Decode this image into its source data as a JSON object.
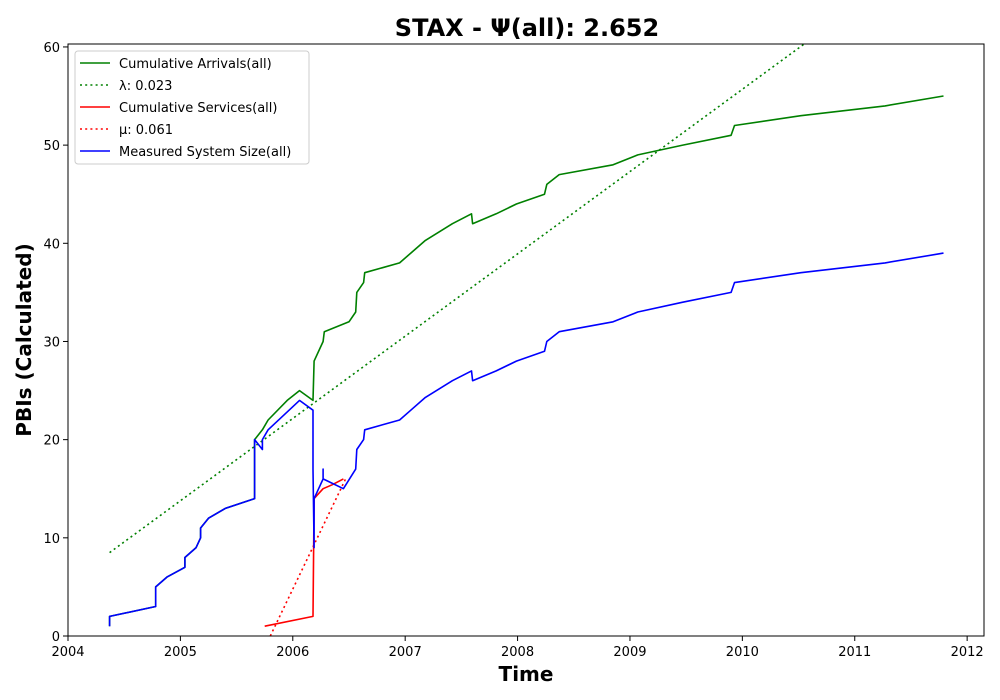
{
  "chart_data": {
    "type": "line",
    "title": "STAX -  Ψ(all): 2.652",
    "xlabel": "Time",
    "ylabel": "PBIs (Calculated)",
    "xlim": [
      2004.0,
      2012.15
    ],
    "ylim": [
      0,
      60.3
    ],
    "xticks": [
      2004,
      2005,
      2006,
      2007,
      2008,
      2009,
      2010,
      2011,
      2012
    ],
    "yticks": [
      0,
      10,
      20,
      30,
      40,
      50,
      60
    ],
    "grid": false,
    "legend_position": "top-left",
    "series": [
      {
        "name": "Cumulative Arrivals(all)",
        "style": "solid",
        "color": "#008000",
        "points": [
          [
            2004.37,
            1
          ],
          [
            2004.37,
            2
          ],
          [
            2004.78,
            3
          ],
          [
            2004.78,
            5
          ],
          [
            2004.88,
            6
          ],
          [
            2005.04,
            7
          ],
          [
            2005.04,
            8
          ],
          [
            2005.14,
            9
          ],
          [
            2005.18,
            10
          ],
          [
            2005.18,
            11
          ],
          [
            2005.25,
            12
          ],
          [
            2005.4,
            13
          ],
          [
            2005.66,
            14
          ],
          [
            2005.66,
            18
          ],
          [
            2005.66,
            20
          ],
          [
            2005.73,
            21
          ],
          [
            2005.78,
            22
          ],
          [
            2005.95,
            24
          ],
          [
            2006.06,
            25
          ],
          [
            2006.18,
            24
          ],
          [
            2006.19,
            28
          ],
          [
            2006.27,
            30
          ],
          [
            2006.28,
            31
          ],
          [
            2006.5,
            32
          ],
          [
            2006.56,
            33
          ],
          [
            2006.57,
            35
          ],
          [
            2006.63,
            36
          ],
          [
            2006.64,
            37
          ],
          [
            2006.95,
            38
          ],
          [
            2007.05,
            39
          ],
          [
            2007.18,
            40.3
          ],
          [
            2007.42,
            42
          ],
          [
            2007.59,
            43
          ],
          [
            2007.6,
            42
          ],
          [
            2007.81,
            43
          ],
          [
            2007.99,
            44
          ],
          [
            2008.24,
            45
          ],
          [
            2008.26,
            46
          ],
          [
            2008.37,
            47
          ],
          [
            2008.85,
            48
          ],
          [
            2009.07,
            49
          ],
          [
            2009.47,
            50
          ],
          [
            2009.9,
            51
          ],
          [
            2009.93,
            52
          ],
          [
            2010.52,
            53
          ],
          [
            2011.27,
            54
          ],
          [
            2011.79,
            55
          ]
        ]
      },
      {
        "name": "λ: 0.023",
        "style": "dotted",
        "color": "#008000",
        "points": [
          [
            2004.37,
            8.5
          ],
          [
            2010.55,
            60.3
          ]
        ]
      },
      {
        "name": "Cumulative Services(all)",
        "style": "solid",
        "color": "#ff0000",
        "points": [
          [
            2005.75,
            1
          ],
          [
            2006.18,
            2
          ],
          [
            2006.19,
            14
          ],
          [
            2006.27,
            15
          ],
          [
            2006.35,
            15.4
          ],
          [
            2006.45,
            16
          ]
        ]
      },
      {
        "name": "μ: 0.061",
        "style": "dotted",
        "color": "#ff0000",
        "points": [
          [
            2005.8,
            0
          ],
          [
            2006.47,
            16
          ]
        ]
      },
      {
        "name": "Measured System Size(all)",
        "style": "solid",
        "color": "#0000ff",
        "points": [
          [
            2004.37,
            1
          ],
          [
            2004.37,
            2
          ],
          [
            2004.78,
            3
          ],
          [
            2004.78,
            5
          ],
          [
            2004.88,
            6
          ],
          [
            2005.04,
            7
          ],
          [
            2005.04,
            8
          ],
          [
            2005.14,
            9
          ],
          [
            2005.18,
            10
          ],
          [
            2005.18,
            11
          ],
          [
            2005.25,
            12
          ],
          [
            2005.4,
            13
          ],
          [
            2005.66,
            14
          ],
          [
            2005.66,
            18
          ],
          [
            2005.66,
            20
          ],
          [
            2005.73,
            19
          ],
          [
            2005.73,
            20
          ],
          [
            2005.78,
            21
          ],
          [
            2006.06,
            24
          ],
          [
            2006.18,
            23
          ],
          [
            2006.18,
            18
          ],
          [
            2006.18,
            17
          ],
          [
            2006.19,
            9
          ],
          [
            2006.19,
            14
          ],
          [
            2006.27,
            16
          ],
          [
            2006.27,
            17
          ],
          [
            2006.27,
            16
          ],
          [
            2006.45,
            15
          ],
          [
            2006.56,
            17
          ],
          [
            2006.57,
            19
          ],
          [
            2006.63,
            20
          ],
          [
            2006.64,
            21
          ],
          [
            2006.95,
            22
          ],
          [
            2007.05,
            23
          ],
          [
            2007.18,
            24.3
          ],
          [
            2007.42,
            26
          ],
          [
            2007.59,
            27
          ],
          [
            2007.6,
            26
          ],
          [
            2007.81,
            27
          ],
          [
            2007.99,
            28
          ],
          [
            2008.24,
            29
          ],
          [
            2008.26,
            30
          ],
          [
            2008.37,
            31
          ],
          [
            2008.85,
            32
          ],
          [
            2009.07,
            33
          ],
          [
            2009.47,
            34
          ],
          [
            2009.9,
            35
          ],
          [
            2009.93,
            36
          ],
          [
            2010.52,
            37
          ],
          [
            2011.27,
            38
          ],
          [
            2011.79,
            39
          ]
        ]
      }
    ]
  }
}
